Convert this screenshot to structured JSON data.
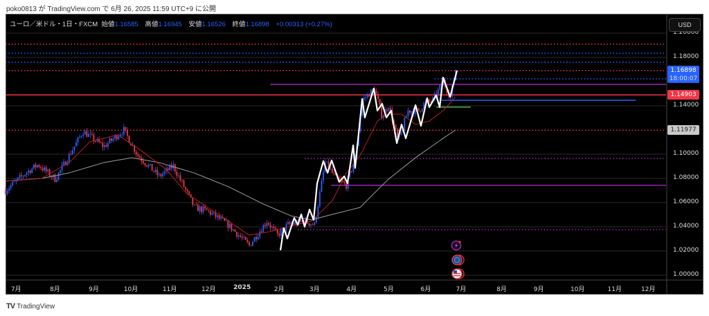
{
  "publish_line": "poko0813 が TradingView.com で 6月 26, 2025 11:59 UTC+9 に公開",
  "legend": {
    "symbol": "ユーロ／米ドル・1日・FXCM",
    "open_label": "始値",
    "open": "1.16585",
    "high_label": "高値",
    "high": "1.16945",
    "low_label": "安値",
    "low": "1.16526",
    "close_label": "終値",
    "close": "1.16898",
    "change": "+0.00313 (+0.27%)"
  },
  "currency_button": "USD",
  "price_axis": {
    "ticks": [
      "1.20000",
      "1.18000",
      "1.14000",
      "1.10000",
      "1.08000",
      "1.06000",
      "1.04000",
      "1.02000",
      "1.00000"
    ],
    "tick_values": [
      1.2,
      1.18,
      1.14,
      1.1,
      1.08,
      1.06,
      1.04,
      1.02,
      1.0
    ],
    "current_price": "1.16898",
    "countdown": "18:00:07",
    "level_red": "1.14903",
    "level_grey": "1.11977"
  },
  "time_axis": {
    "labels": [
      "7月",
      "8月",
      "9月",
      "10月",
      "11月",
      "12月",
      "2025",
      "2月",
      "3月",
      "4月",
      "5月",
      "6月",
      "7月",
      "8月",
      "9月",
      "10月",
      "11月",
      "12月"
    ],
    "label_day_index": [
      6,
      28,
      50,
      71,
      93,
      115,
      134,
      155,
      175,
      196,
      217,
      238,
      258,
      281,
      302,
      324,
      345,
      364
    ]
  },
  "colors": {
    "up": "#2962ff",
    "down": "#f23645",
    "ma_fast": "#b22222",
    "ma_slow": "#9e9e9e",
    "zigzag": "#ffffff",
    "purple": "#9c27b0",
    "green": "#4caf50"
  },
  "chart_data": {
    "type": "candlestick",
    "symbol": "EURUSD",
    "x_unit": "trading day index from 2024-07-01",
    "ylim": [
      0.9935,
      1.2055
    ],
    "price_path": [
      [
        0,
        1.0703
      ],
      [
        12.5,
        1.0857
      ],
      [
        18.4,
        1.0914
      ],
      [
        28.2,
        1.0794
      ],
      [
        36,
        1.0989
      ],
      [
        43.9,
        1.1189
      ],
      [
        55.7,
        1.1063
      ],
      [
        67,
        1.12
      ],
      [
        75,
        1.0989
      ],
      [
        87,
        1.0817
      ],
      [
        95,
        1.0903
      ],
      [
        107,
        1.056
      ],
      [
        114.5,
        1.0531
      ],
      [
        126,
        1.0417
      ],
      [
        138,
        1.0246
      ],
      [
        148,
        1.0446
      ],
      [
        154,
        1.0331
      ],
      [
        160,
        1.0417
      ],
      [
        169,
        1.0446
      ],
      [
        175,
        1.0417
      ],
      [
        181,
        1.0931
      ],
      [
        187,
        1.08
      ],
      [
        193,
        1.0743
      ],
      [
        198,
        1.096
      ],
      [
        202,
        1.1446
      ],
      [
        209,
        1.1543
      ],
      [
        213.3,
        1.1314
      ],
      [
        217,
        1.1406
      ],
      [
        222.4,
        1.1103
      ],
      [
        228,
        1.136
      ],
      [
        234,
        1.136
      ],
      [
        237,
        1.1417
      ],
      [
        242,
        1.1446
      ],
      [
        248,
        1.16
      ],
      [
        252,
        1.1474
      ],
      [
        255,
        1.1691
      ]
    ],
    "zigzag": [
      [
        155.7,
        1.0206
      ],
      [
        157.6,
        1.0389
      ],
      [
        159.6,
        1.0303
      ],
      [
        163.5,
        1.0474
      ],
      [
        165.5,
        1.0417
      ],
      [
        167.5,
        1.0503
      ],
      [
        169.4,
        1.04
      ],
      [
        172.2,
        1.0543
      ],
      [
        174.5,
        1.0457
      ],
      [
        176.5,
        1.076
      ],
      [
        180,
        1.0943
      ],
      [
        182.4,
        1.0846
      ],
      [
        184.7,
        1.0949
      ],
      [
        189,
        1.0771
      ],
      [
        191.8,
        1.0817
      ],
      [
        193.7,
        1.076
      ],
      [
        196.9,
        1.1074
      ],
      [
        198,
        1.0886
      ],
      [
        202,
        1.1457
      ],
      [
        203.5,
        1.1303
      ],
      [
        208.6,
        1.1543
      ],
      [
        210.6,
        1.136
      ],
      [
        213.3,
        1.1417
      ],
      [
        215.7,
        1.1303
      ],
      [
        218.4,
        1.136
      ],
      [
        221.6,
        1.1091
      ],
      [
        224.3,
        1.1246
      ],
      [
        226.7,
        1.1131
      ],
      [
        232.2,
        1.1406
      ],
      [
        235.3,
        1.1234
      ],
      [
        238.8,
        1.1463
      ],
      [
        240,
        1.1389
      ],
      [
        243.9,
        1.1486
      ],
      [
        245.9,
        1.1389
      ],
      [
        247.8,
        1.1634
      ],
      [
        251.8,
        1.1474
      ],
      [
        255.7,
        1.1691
      ]
    ],
    "ma_fast": [
      [
        0,
        1.0777
      ],
      [
        20.4,
        1.08
      ],
      [
        36.1,
        1.0931
      ],
      [
        47.8,
        1.1103
      ],
      [
        63.5,
        1.116
      ],
      [
        75.3,
        1.1046
      ],
      [
        91,
        1.0874
      ],
      [
        102.7,
        1.0674
      ],
      [
        114.5,
        1.056
      ],
      [
        126.3,
        1.0446
      ],
      [
        138,
        1.0331
      ],
      [
        149.8,
        1.036
      ],
      [
        161.6,
        1.0406
      ],
      [
        173.3,
        1.0446
      ],
      [
        185.1,
        1.0617
      ],
      [
        192.9,
        1.084
      ],
      [
        200.8,
        1.0989
      ],
      [
        210.6,
        1.1274
      ],
      [
        216.5,
        1.1331
      ],
      [
        224.3,
        1.1331
      ],
      [
        232.2,
        1.1246
      ],
      [
        240,
        1.1274
      ],
      [
        247.8,
        1.136
      ],
      [
        254.9,
        1.1474
      ]
    ],
    "ma_slow": [
      [
        0,
        1.0777
      ],
      [
        20.4,
        1.08
      ],
      [
        36.1,
        1.0846
      ],
      [
        55.7,
        1.0931
      ],
      [
        71.4,
        1.0971
      ],
      [
        87.1,
        1.0931
      ],
      [
        106.7,
        1.0846
      ],
      [
        126.3,
        1.0731
      ],
      [
        145.9,
        1.0589
      ],
      [
        161.6,
        1.0491
      ],
      [
        173.3,
        1.0457
      ],
      [
        185.1,
        1.0503
      ],
      [
        200.8,
        1.056
      ],
      [
        216.5,
        1.0789
      ],
      [
        232.2,
        1.0971
      ],
      [
        247.8,
        1.1131
      ],
      [
        254.9,
        1.12
      ]
    ],
    "levels": [
      {
        "name": "red-dotted-1",
        "price": 1.1909,
        "style": "dotted",
        "color": "#f23645",
        "from": 0
      },
      {
        "name": "blue-dotted-1",
        "price": 1.1834,
        "style": "dotted",
        "color": "#2962ff",
        "from": 0
      },
      {
        "name": "blue-dotted-2",
        "price": 1.176,
        "style": "dotted",
        "color": "#2962ff",
        "from": 0
      },
      {
        "name": "red-dotted-2",
        "price": 1.1691,
        "style": "dotted",
        "color": "#f23645",
        "from": 0
      },
      {
        "name": "blue-dotted-3",
        "price": 1.1623,
        "style": "dotted",
        "color": "#2962ff",
        "from": 243
      },
      {
        "name": "purple-solid-1",
        "price": 1.1577,
        "style": "solid",
        "color": "#9c27b0",
        "from": 150
      },
      {
        "name": "red-solid",
        "price": 1.14903,
        "style": "solid",
        "color": "#f23645",
        "from": 0
      },
      {
        "name": "blue-solid",
        "price": 1.1446,
        "style": "solid",
        "color": "#2962ff",
        "from": 246,
        "to": 357
      },
      {
        "name": "green-solid",
        "price": 1.1389,
        "style": "solid",
        "color": "#4caf50",
        "from": 244,
        "to": 263.5
      },
      {
        "name": "red-dotted-3",
        "price": 1.11977,
        "style": "dotted",
        "color": "#f23645",
        "from": 0
      },
      {
        "name": "purple-dotted-1",
        "price": 1.0966,
        "style": "dotted",
        "color": "#9c27b0",
        "from": 169.4
      },
      {
        "name": "purple-solid-2",
        "price": 1.0743,
        "style": "solid",
        "color": "#9c27b0",
        "from": 184.3
      },
      {
        "name": "purple-dotted-2",
        "price": 1.0377,
        "style": "dotted",
        "color": "#9c27b0",
        "from": 165.5
      }
    ]
  },
  "event_icons": [
    "lightning-icon",
    "eu-flag-icon",
    "us-flag-icon"
  ],
  "footer_logo": "TradingView"
}
